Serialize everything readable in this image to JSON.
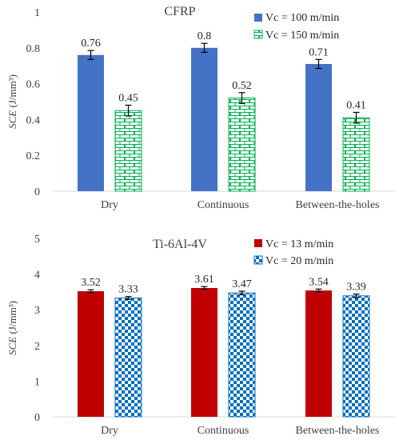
{
  "chart_data": [
    {
      "type": "bar",
      "title": "CFRP",
      "ylabel_italic": "SCE",
      "ylabel_unit": " (J/mm³)",
      "categories": [
        "Dry",
        "Continuous",
        "Between-the-holes"
      ],
      "ylim": [
        0,
        1
      ],
      "yticks": [
        "0",
        "0.2",
        "0.4",
        "0.6",
        "0.8",
        "1"
      ],
      "yticks_values": [
        0,
        0.2,
        0.4,
        0.6,
        0.8,
        1
      ],
      "grid": false,
      "legend_position": "top-right",
      "series": [
        {
          "name": "Vc = 100 m/min",
          "values": [
            0.76,
            0.8,
            0.71
          ],
          "labels": [
            "0.76",
            "0.8",
            "0.71"
          ],
          "errors": [
            0.025,
            0.025,
            0.025
          ],
          "color": "#4472C4",
          "pattern": "solid"
        },
        {
          "name": "Vc = 150 m/min",
          "values": [
            0.45,
            0.52,
            0.41
          ],
          "labels": [
            "0.45",
            "0.52",
            "0.41"
          ],
          "errors": [
            0.03,
            0.03,
            0.03
          ],
          "color": "#00B050",
          "pattern": "brick"
        }
      ]
    },
    {
      "type": "bar",
      "title": "Ti-6Al-4V",
      "ylabel_italic": "SCE",
      "ylabel_unit": " (J/mm³)",
      "categories": [
        "Dry",
        "Continuous",
        "Between-the-holes"
      ],
      "ylim": [
        0,
        5
      ],
      "yticks": [
        "0",
        "1",
        "2",
        "3",
        "4",
        "5"
      ],
      "yticks_values": [
        0,
        1,
        2,
        3,
        4,
        5
      ],
      "grid": false,
      "legend_position": "top-right",
      "series": [
        {
          "name": "Vc = 13 m/min",
          "values": [
            3.52,
            3.61,
            3.54
          ],
          "labels": [
            "3.52",
            "3.61",
            "3.54"
          ],
          "errors": [
            0.04,
            0.04,
            0.04
          ],
          "color": "#C00000",
          "pattern": "solid"
        },
        {
          "name": "Vc = 20 m/min",
          "values": [
            3.33,
            3.47,
            3.39
          ],
          "labels": [
            "3.33",
            "3.47",
            "3.39"
          ],
          "errors": [
            0.04,
            0.05,
            0.05
          ],
          "color": "#0070C0",
          "pattern": "checker"
        }
      ]
    }
  ]
}
